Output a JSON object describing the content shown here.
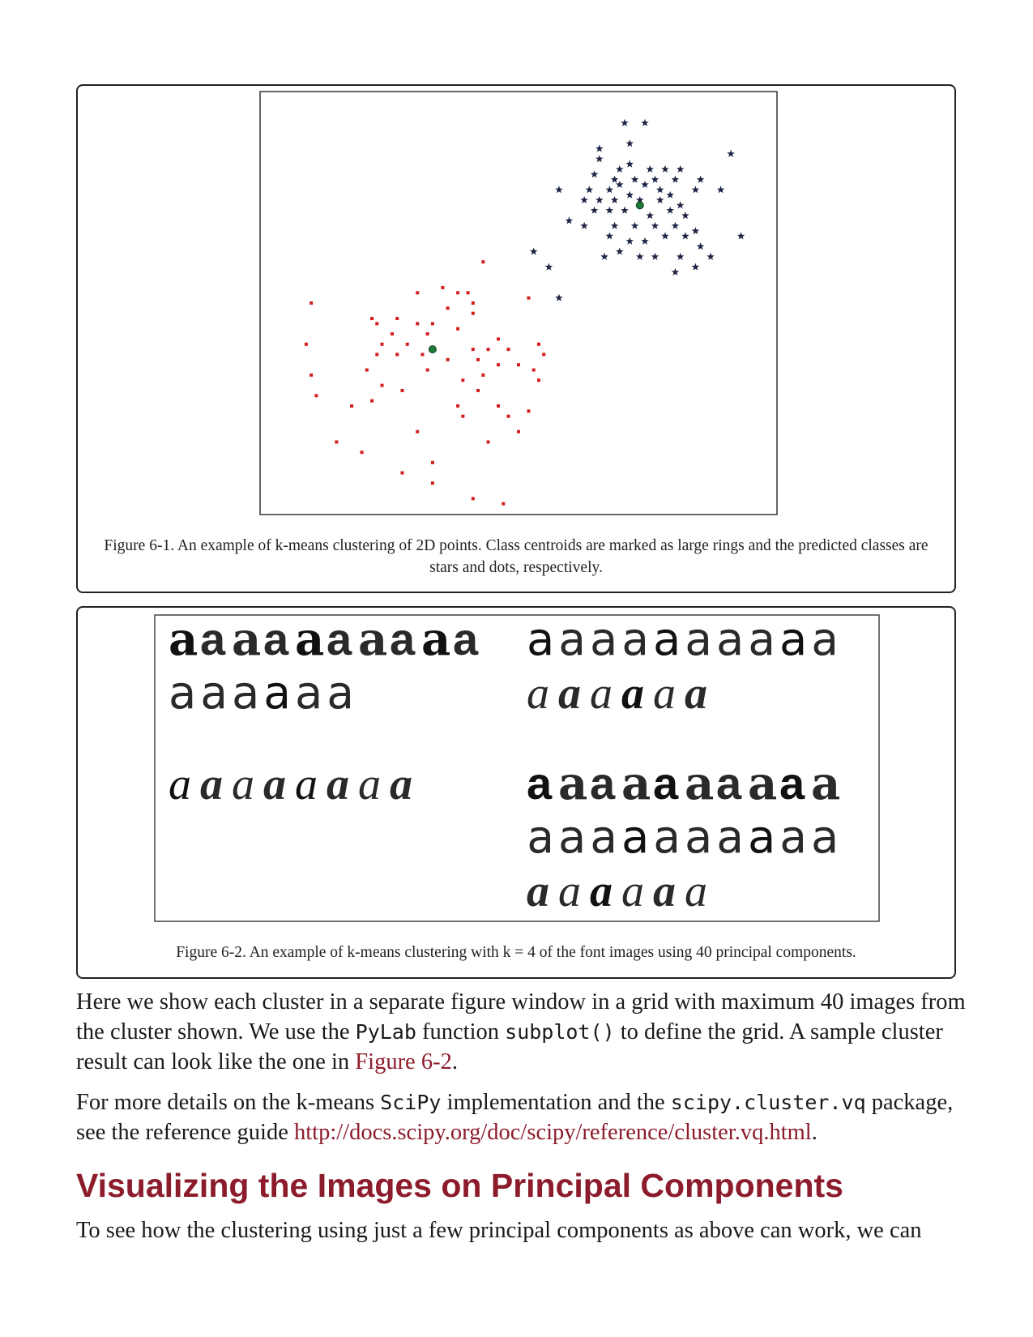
{
  "figure1": {
    "caption": "Figure 6-1. An example of k-means clustering of 2D points. Class centroids are marked as large rings and the predicted classes are stars and dots, respectively.",
    "chart_data": {
      "type": "scatter",
      "title": "",
      "xlabel": "",
      "ylabel": "",
      "xlim": [
        0,
        10
      ],
      "ylim": [
        0,
        8
      ],
      "series": [
        {
          "marker": "star",
          "color": "#1e2444",
          "centroid": [
            7.4,
            5.9
          ],
          "points": [
            [
              7.1,
              7.5
            ],
            [
              7.5,
              7.5
            ],
            [
              6.6,
              7.0
            ],
            [
              7.2,
              7.1
            ],
            [
              9.2,
              6.9
            ],
            [
              6.6,
              6.8
            ],
            [
              7.0,
              6.6
            ],
            [
              7.2,
              6.7
            ],
            [
              7.6,
              6.6
            ],
            [
              7.9,
              6.6
            ],
            [
              8.2,
              6.6
            ],
            [
              6.5,
              6.5
            ],
            [
              6.9,
              6.4
            ],
            [
              7.3,
              6.4
            ],
            [
              7.7,
              6.4
            ],
            [
              8.1,
              6.4
            ],
            [
              8.6,
              6.4
            ],
            [
              5.8,
              6.2
            ],
            [
              6.4,
              6.2
            ],
            [
              6.8,
              6.2
            ],
            [
              7.0,
              6.3
            ],
            [
              7.5,
              6.3
            ],
            [
              7.8,
              6.2
            ],
            [
              8.0,
              6.1
            ],
            [
              8.5,
              6.2
            ],
            [
              9.0,
              6.2
            ],
            [
              6.3,
              6.0
            ],
            [
              6.6,
              6.0
            ],
            [
              6.9,
              6.0
            ],
            [
              7.2,
              6.1
            ],
            [
              7.4,
              6.0
            ],
            [
              7.8,
              6.0
            ],
            [
              8.2,
              5.9
            ],
            [
              6.5,
              5.8
            ],
            [
              6.8,
              5.8
            ],
            [
              7.1,
              5.8
            ],
            [
              7.6,
              5.7
            ],
            [
              8.0,
              5.8
            ],
            [
              8.3,
              5.7
            ],
            [
              6.0,
              5.6
            ],
            [
              6.3,
              5.5
            ],
            [
              6.9,
              5.5
            ],
            [
              7.3,
              5.5
            ],
            [
              7.7,
              5.5
            ],
            [
              8.1,
              5.5
            ],
            [
              8.5,
              5.4
            ],
            [
              6.8,
              5.3
            ],
            [
              7.2,
              5.2
            ],
            [
              7.5,
              5.2
            ],
            [
              7.9,
              5.3
            ],
            [
              8.3,
              5.3
            ],
            [
              9.4,
              5.3
            ],
            [
              5.3,
              5.0
            ],
            [
              6.7,
              4.9
            ],
            [
              7.0,
              5.0
            ],
            [
              7.4,
              4.9
            ],
            [
              7.7,
              4.9
            ],
            [
              8.2,
              4.9
            ],
            [
              8.6,
              5.1
            ],
            [
              8.8,
              4.9
            ],
            [
              5.6,
              4.7
            ],
            [
              8.5,
              4.7
            ],
            [
              8.1,
              4.6
            ],
            [
              5.8,
              4.1
            ]
          ]
        },
        {
          "marker": "dot",
          "color": "#d21e1e",
          "centroid": [
            3.3,
            3.1
          ],
          "points": [
            [
              4.3,
              4.8
            ],
            [
              3.0,
              4.2
            ],
            [
              3.5,
              4.3
            ],
            [
              3.8,
              4.2
            ],
            [
              4.0,
              4.2
            ],
            [
              0.9,
              4.0
            ],
            [
              4.1,
              4.0
            ],
            [
              5.2,
              4.1
            ],
            [
              3.6,
              3.9
            ],
            [
              4.1,
              3.8
            ],
            [
              2.1,
              3.7
            ],
            [
              2.2,
              3.6
            ],
            [
              2.6,
              3.7
            ],
            [
              3.0,
              3.6
            ],
            [
              3.3,
              3.6
            ],
            [
              3.8,
              3.5
            ],
            [
              0.8,
              3.2
            ],
            [
              2.5,
              3.4
            ],
            [
              3.2,
              3.4
            ],
            [
              4.6,
              3.3
            ],
            [
              2.3,
              3.2
            ],
            [
              2.8,
              3.2
            ],
            [
              3.1,
              3.0
            ],
            [
              4.1,
              3.1
            ],
            [
              4.4,
              3.1
            ],
            [
              4.8,
              3.1
            ],
            [
              5.4,
              3.2
            ],
            [
              2.2,
              3.0
            ],
            [
              2.6,
              3.0
            ],
            [
              3.6,
              2.9
            ],
            [
              4.2,
              2.9
            ],
            [
              5.0,
              2.8
            ],
            [
              5.5,
              3.0
            ],
            [
              0.9,
              2.6
            ],
            [
              2.0,
              2.7
            ],
            [
              3.2,
              2.7
            ],
            [
              3.9,
              2.5
            ],
            [
              4.3,
              2.6
            ],
            [
              4.6,
              2.8
            ],
            [
              5.3,
              2.7
            ],
            [
              2.3,
              2.4
            ],
            [
              2.7,
              2.3
            ],
            [
              4.2,
              2.3
            ],
            [
              5.4,
              2.5
            ],
            [
              1.0,
              2.2
            ],
            [
              1.7,
              2.0
            ],
            [
              2.1,
              2.1
            ],
            [
              3.8,
              2.0
            ],
            [
              4.6,
              2.0
            ],
            [
              4.8,
              1.8
            ],
            [
              5.2,
              1.9
            ],
            [
              3.9,
              1.8
            ],
            [
              5.0,
              1.5
            ],
            [
              3.0,
              1.5
            ],
            [
              1.4,
              1.3
            ],
            [
              4.4,
              1.3
            ],
            [
              1.9,
              1.1
            ],
            [
              3.3,
              0.9
            ],
            [
              2.7,
              0.7
            ],
            [
              3.3,
              0.5
            ],
            [
              4.1,
              0.2
            ],
            [
              4.7,
              0.1
            ]
          ]
        }
      ]
    }
  },
  "figure2": {
    "caption": "Figure 6-2. An example of k-means clustering with k = 4 of the font images using 40 principal components.",
    "cluster_glyphs": [
      "a",
      "a",
      "a",
      "a"
    ]
  },
  "body": {
    "p1_a": "Here we show each cluster in a separate figure window in a grid with maximum 40 images from the cluster shown. We use the ",
    "p1_code1": "PyLab",
    "p1_b": " function ",
    "p1_code2": "subplot()",
    "p1_c": " to define the grid. A sample cluster result can look like the one in ",
    "p1_link": "Figure 6-2",
    "p1_d": ".",
    "p2_a": "For more details on the k-means ",
    "p2_code1": "SciPy",
    "p2_b": " implementation and the ",
    "p2_code2": "scipy.cluster.vq",
    "p2_c": " package, see the reference guide ",
    "p2_link": "http://docs.scipy.org/doc/scipy/reference/cluster.vq.html",
    "p2_d": ".",
    "heading": "Visualizing the Images on Principal Components",
    "p3": "To see how the clustering using just a few principal components as above can work, we can"
  },
  "colors": {
    "link": "#8c1c2c",
    "heading": "#8c1c2c",
    "stars": "#1e2444",
    "dots": "#d21e1e",
    "centroid": "#1d7a3a"
  }
}
